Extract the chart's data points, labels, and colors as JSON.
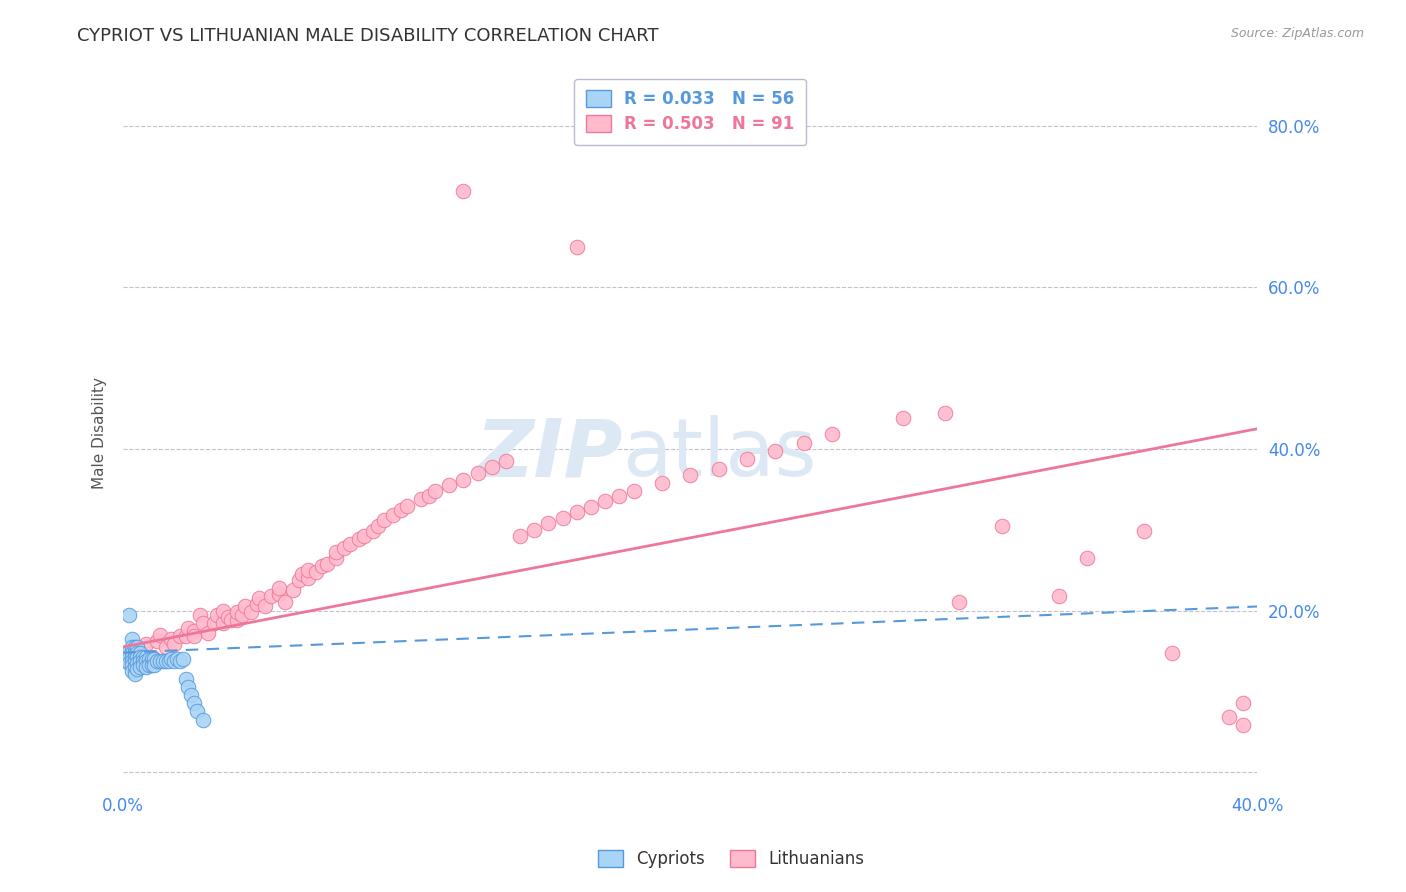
{
  "title": "CYPRIOT VS LITHUANIAN MALE DISABILITY CORRELATION CHART",
  "source": "Source: ZipAtlas.com",
  "ylabel": "Male Disability",
  "xlim": [
    0.0,
    0.4
  ],
  "ylim": [
    -0.02,
    0.86
  ],
  "yticks": [
    0.0,
    0.2,
    0.4,
    0.6,
    0.8
  ],
  "ytick_labels": [
    "",
    "20.0%",
    "40.0%",
    "60.0%",
    "80.0%"
  ],
  "xticks": [
    0.0,
    0.1,
    0.2,
    0.3,
    0.4
  ],
  "xtick_labels": [
    "0.0%",
    "",
    "",
    "",
    "40.0%"
  ],
  "background_color": "#ffffff",
  "grid_color": "#bbbbcc",
  "cypriot_color": "#aad4f5",
  "cypriot_edge_color": "#5599dd",
  "lithuanian_color": "#ffbbcc",
  "lithuanian_edge_color": "#ee7799",
  "cypriot_R": 0.033,
  "cypriot_N": 56,
  "lithuanian_R": 0.503,
  "lithuanian_N": 91,
  "watermark_zip": "ZIP",
  "watermark_atlas": "atlas",
  "watermark_color": "#dde8f5",
  "cypriot_scatter_x": [
    0.001,
    0.001,
    0.002,
    0.002,
    0.002,
    0.002,
    0.003,
    0.003,
    0.003,
    0.003,
    0.003,
    0.003,
    0.003,
    0.004,
    0.004,
    0.004,
    0.004,
    0.004,
    0.004,
    0.005,
    0.005,
    0.005,
    0.005,
    0.005,
    0.006,
    0.006,
    0.006,
    0.006,
    0.007,
    0.007,
    0.007,
    0.008,
    0.008,
    0.008,
    0.009,
    0.009,
    0.01,
    0.01,
    0.011,
    0.011,
    0.012,
    0.013,
    0.014,
    0.015,
    0.016,
    0.017,
    0.018,
    0.019,
    0.02,
    0.021,
    0.022,
    0.023,
    0.024,
    0.025,
    0.026,
    0.028
  ],
  "cypriot_scatter_y": [
    0.143,
    0.138,
    0.195,
    0.15,
    0.143,
    0.135,
    0.165,
    0.155,
    0.148,
    0.143,
    0.138,
    0.132,
    0.125,
    0.155,
    0.148,
    0.143,
    0.138,
    0.13,
    0.122,
    0.155,
    0.148,
    0.143,
    0.135,
    0.128,
    0.148,
    0.143,
    0.138,
    0.13,
    0.143,
    0.138,
    0.132,
    0.143,
    0.138,
    0.13,
    0.14,
    0.133,
    0.14,
    0.133,
    0.14,
    0.133,
    0.138,
    0.138,
    0.138,
    0.138,
    0.138,
    0.14,
    0.138,
    0.14,
    0.138,
    0.14,
    0.115,
    0.105,
    0.095,
    0.085,
    0.075,
    0.065
  ],
  "lithuanian_scatter_x": [
    0.005,
    0.008,
    0.01,
    0.012,
    0.013,
    0.015,
    0.017,
    0.018,
    0.02,
    0.022,
    0.023,
    0.025,
    0.025,
    0.027,
    0.028,
    0.03,
    0.032,
    0.033,
    0.035,
    0.035,
    0.037,
    0.038,
    0.04,
    0.04,
    0.042,
    0.043,
    0.045,
    0.047,
    0.048,
    0.05,
    0.052,
    0.055,
    0.055,
    0.057,
    0.06,
    0.062,
    0.063,
    0.065,
    0.065,
    0.068,
    0.07,
    0.072,
    0.075,
    0.075,
    0.078,
    0.08,
    0.083,
    0.085,
    0.088,
    0.09,
    0.092,
    0.095,
    0.098,
    0.1,
    0.105,
    0.108,
    0.11,
    0.115,
    0.12,
    0.125,
    0.13,
    0.135,
    0.14,
    0.145,
    0.15,
    0.155,
    0.16,
    0.165,
    0.17,
    0.175,
    0.18,
    0.19,
    0.2,
    0.21,
    0.22,
    0.23,
    0.24,
    0.25,
    0.275,
    0.29,
    0.295,
    0.31,
    0.33,
    0.34,
    0.36,
    0.37,
    0.39,
    0.395,
    0.12,
    0.16,
    0.395
  ],
  "lithuanian_scatter_y": [
    0.155,
    0.158,
    0.143,
    0.162,
    0.17,
    0.155,
    0.165,
    0.158,
    0.168,
    0.168,
    0.178,
    0.175,
    0.168,
    0.195,
    0.185,
    0.172,
    0.185,
    0.195,
    0.185,
    0.2,
    0.192,
    0.188,
    0.188,
    0.198,
    0.195,
    0.205,
    0.198,
    0.208,
    0.215,
    0.205,
    0.218,
    0.22,
    0.228,
    0.21,
    0.225,
    0.238,
    0.245,
    0.24,
    0.25,
    0.248,
    0.255,
    0.258,
    0.265,
    0.272,
    0.278,
    0.282,
    0.288,
    0.292,
    0.298,
    0.305,
    0.312,
    0.318,
    0.325,
    0.33,
    0.338,
    0.342,
    0.348,
    0.355,
    0.362,
    0.37,
    0.378,
    0.385,
    0.292,
    0.3,
    0.308,
    0.315,
    0.322,
    0.328,
    0.335,
    0.342,
    0.348,
    0.358,
    0.368,
    0.375,
    0.388,
    0.398,
    0.408,
    0.418,
    0.438,
    0.445,
    0.21,
    0.305,
    0.218,
    0.265,
    0.298,
    0.148,
    0.068,
    0.058,
    0.72,
    0.65,
    0.085
  ],
  "cypriot_trend_x": [
    0.0,
    0.4
  ],
  "cypriot_trend_y": [
    0.148,
    0.205
  ],
  "lithuanian_trend_x": [
    0.0,
    0.4
  ],
  "lithuanian_trend_y": [
    0.155,
    0.425
  ]
}
